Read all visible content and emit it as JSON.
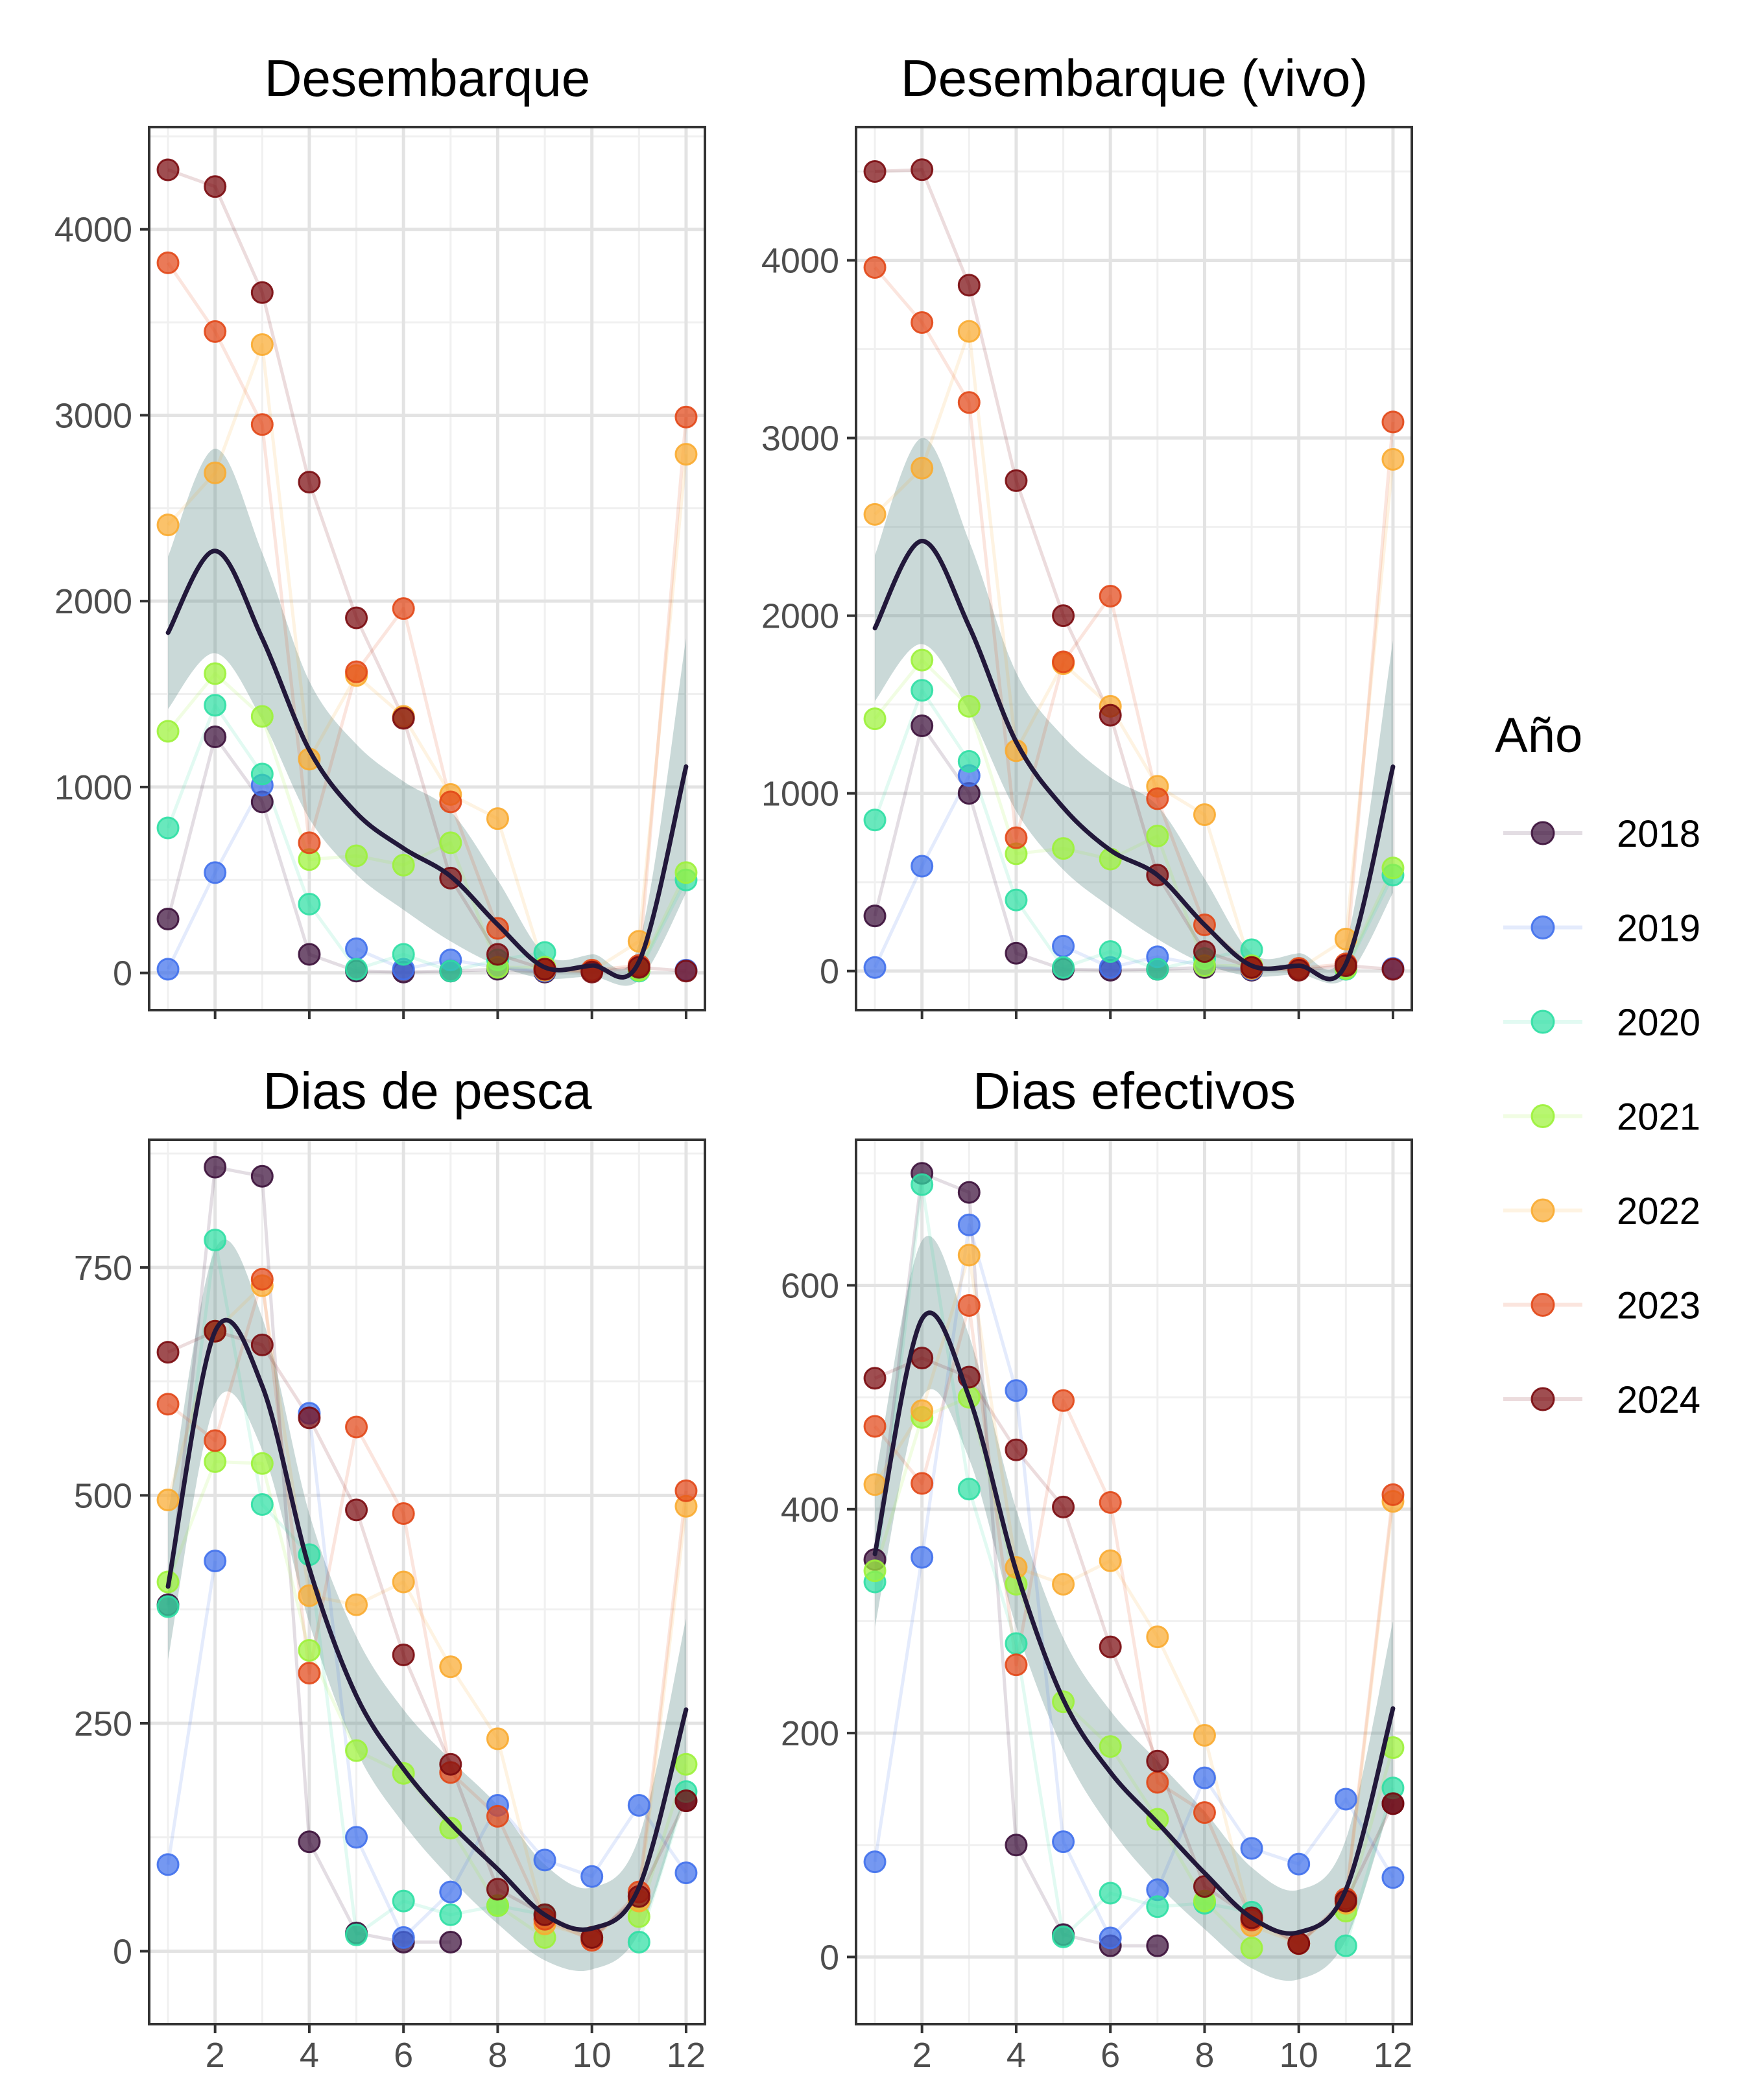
{
  "chart_data": {
    "type": "scatter",
    "legend": {
      "title": "Año",
      "position": "right"
    },
    "colors": {
      "2018": "#3b0f3a",
      "2019": "#4070ec",
      "2020": "#2fdfa4",
      "2021": "#9cf23a",
      "2022": "#f9ab30",
      "2023": "#e24717",
      "2024": "#7a0a0e",
      "trend_line": "#22183a",
      "ribbon": "#5b8a86"
    },
    "years": [
      "2018",
      "2019",
      "2020",
      "2021",
      "2022",
      "2023",
      "2024"
    ],
    "x": [
      1,
      2,
      3,
      4,
      5,
      6,
      7,
      8,
      9,
      10,
      11,
      12
    ],
    "xticks": [
      2,
      4,
      6,
      8,
      10,
      12
    ],
    "panels": [
      {
        "title": "Desembarque",
        "ylim": [
          -200,
          4550
        ],
        "yticks": [
          0,
          1000,
          2000,
          3000,
          4000
        ],
        "series": [
          {
            "name": "2018",
            "values": [
              290,
              1270,
              920,
              100,
              10,
              5,
              10,
              20,
              5,
              null,
              null,
              null
            ]
          },
          {
            "name": "2019",
            "values": [
              20,
              540,
              1010,
              null,
              130,
              20,
              70,
              30,
              10,
              null,
              null,
              15
            ]
          },
          {
            "name": "2020",
            "values": [
              780,
              1440,
              1070,
              370,
              20,
              100,
              10,
              70,
              110,
              null,
              10,
              500
            ]
          },
          {
            "name": "2021",
            "values": [
              1300,
              1610,
              1380,
              610,
              630,
              580,
              700,
              30,
              30,
              null,
              15,
              540
            ]
          },
          {
            "name": "2022",
            "values": [
              2410,
              2690,
              3380,
              1150,
              1600,
              1380,
              960,
              830,
              15,
              10,
              170,
              2790
            ]
          },
          {
            "name": "2023",
            "values": [
              3820,
              3450,
              2950,
              700,
              1620,
              1960,
              920,
              240,
              20,
              15,
              40,
              2990
            ]
          },
          {
            "name": "2024",
            "values": [
              4320,
              4230,
              3660,
              2640,
              1910,
              1370,
              510,
              100,
              20,
              5,
              30,
              10
            ]
          }
        ],
        "trend": [
          [
            1,
            1830
          ],
          [
            2,
            2270
          ],
          [
            3,
            1800
          ],
          [
            4,
            1200
          ],
          [
            5,
            860
          ],
          [
            6,
            670
          ],
          [
            7,
            520
          ],
          [
            8,
            260
          ],
          [
            9,
            30
          ],
          [
            10,
            40
          ],
          [
            11,
            60
          ],
          [
            12,
            1110
          ]
        ],
        "band": [
          [
            1,
            1420,
            2240
          ],
          [
            2,
            1720,
            2820
          ],
          [
            3,
            1360,
            2260
          ],
          [
            4,
            830,
            1570
          ],
          [
            5,
            530,
            1230
          ],
          [
            6,
            340,
            1030
          ],
          [
            7,
            170,
            870
          ],
          [
            8,
            40,
            500
          ],
          [
            9,
            -30,
            100
          ],
          [
            10,
            -20,
            100
          ],
          [
            11,
            -40,
            160
          ],
          [
            12,
            430,
            1800
          ]
        ]
      },
      {
        "title": "Desembarque (vivo)",
        "ylim": [
          -220,
          4750
        ],
        "yticks": [
          0,
          1000,
          2000,
          3000,
          4000
        ],
        "series": [
          {
            "name": "2018",
            "values": [
              310,
              1380,
              1000,
              100,
              10,
              5,
              10,
              20,
              5,
              null,
              null,
              null
            ]
          },
          {
            "name": "2019",
            "values": [
              20,
              590,
              1100,
              null,
              140,
              20,
              80,
              30,
              10,
              null,
              null,
              15
            ]
          },
          {
            "name": "2020",
            "values": [
              850,
              1580,
              1180,
              400,
              20,
              110,
              10,
              70,
              120,
              null,
              10,
              540
            ]
          },
          {
            "name": "2021",
            "values": [
              1420,
              1750,
              1490,
              660,
              690,
              630,
              760,
              30,
              30,
              null,
              15,
              580
            ]
          },
          {
            "name": "2022",
            "values": [
              2570,
              2830,
              3600,
              1240,
              1730,
              1490,
              1040,
              880,
              15,
              10,
              180,
              2880
            ]
          },
          {
            "name": "2023",
            "values": [
              3960,
              3650,
              3200,
              750,
              1740,
              2110,
              970,
              260,
              20,
              15,
              40,
              3090
            ]
          },
          {
            "name": "2024",
            "values": [
              4500,
              4510,
              3860,
              2760,
              2000,
              1440,
              540,
              110,
              20,
              5,
              30,
              10
            ]
          }
        ],
        "trend": [
          [
            1,
            1930
          ],
          [
            2,
            2420
          ],
          [
            3,
            1940
          ],
          [
            4,
            1290
          ],
          [
            5,
            920
          ],
          [
            6,
            680
          ],
          [
            7,
            540
          ],
          [
            8,
            260
          ],
          [
            9,
            30
          ],
          [
            10,
            30
          ],
          [
            11,
            40
          ],
          [
            12,
            1150
          ]
        ],
        "band": [
          [
            1,
            1520,
            2340
          ],
          [
            2,
            1840,
            3000
          ],
          [
            3,
            1460,
            2420
          ],
          [
            4,
            900,
            1680
          ],
          [
            5,
            570,
            1320
          ],
          [
            6,
            360,
            1090
          ],
          [
            7,
            180,
            930
          ],
          [
            8,
            40,
            520
          ],
          [
            9,
            -30,
            100
          ],
          [
            10,
            -20,
            100
          ],
          [
            11,
            -40,
            150
          ],
          [
            12,
            440,
            1860
          ]
        ]
      },
      {
        "title": "Dias de pesca",
        "ylim": [
          -80,
          890
        ],
        "yticks": [
          0,
          250,
          500,
          750
        ],
        "series": [
          {
            "name": "2018",
            "values": [
              380,
              860,
              850,
              120,
              20,
              10,
              10,
              null,
              null,
              null,
              null,
              165
            ]
          },
          {
            "name": "2019",
            "values": [
              95,
              428,
              null,
              590,
              125,
              15,
              65,
              160,
              100,
              82,
              160,
              86
            ]
          },
          {
            "name": "2020",
            "values": [
              378,
              780,
              490,
              435,
              18,
              55,
              40,
              50,
              40,
              null,
              10,
              175
            ]
          },
          {
            "name": "2021",
            "values": [
              405,
              537,
              535,
              330,
              220,
              195,
              135,
              50,
              15,
              null,
              38,
              205
            ]
          },
          {
            "name": "2022",
            "values": [
              495,
              680,
              730,
              390,
              380,
              405,
              312,
              233,
              30,
              15,
              55,
              488
            ]
          },
          {
            "name": "2023",
            "values": [
              600,
              560,
              737,
              305,
              575,
              480,
              196,
              148,
              35,
              12,
              65,
              505
            ]
          },
          {
            "name": "2024",
            "values": [
              657,
              680,
              665,
              585,
              484,
              325,
              205,
              68,
              40,
              15,
              60,
              165
            ]
          }
        ],
        "trend": [
          [
            1,
            400
          ],
          [
            2,
            680
          ],
          [
            3,
            620
          ],
          [
            4,
            420
          ],
          [
            5,
            280
          ],
          [
            6,
            200
          ],
          [
            7,
            140
          ],
          [
            8,
            90
          ],
          [
            9,
            40
          ],
          [
            10,
            25
          ],
          [
            11,
            70
          ],
          [
            12,
            265
          ]
        ],
        "band": [
          [
            1,
            320,
            480
          ],
          [
            2,
            600,
            770
          ],
          [
            3,
            550,
            695
          ],
          [
            4,
            360,
            480
          ],
          [
            5,
            220,
            345
          ],
          [
            6,
            140,
            265
          ],
          [
            7,
            80,
            210
          ],
          [
            8,
            30,
            160
          ],
          [
            9,
            -10,
            95
          ],
          [
            10,
            -20,
            70
          ],
          [
            11,
            20,
            125
          ],
          [
            12,
            175,
            365
          ]
        ]
      },
      {
        "title": "Dias efectivos",
        "ylim": [
          -60,
          730
        ],
        "yticks": [
          0,
          200,
          400,
          600
        ],
        "series": [
          {
            "name": "2018",
            "values": [
              355,
              700,
              683,
              100,
              20,
              10,
              10,
              null,
              null,
              null,
              null,
              137
            ]
          },
          {
            "name": "2019",
            "values": [
              85,
              357,
              654,
              506,
              103,
              17,
              60,
              160,
              97,
              83,
              141,
              71
            ]
          },
          {
            "name": "2020",
            "values": [
              335,
              690,
              418,
              280,
              18,
              57,
              45,
              48,
              40,
              null,
              10,
              151
            ]
          },
          {
            "name": "2021",
            "values": [
              345,
              482,
              500,
              333,
              228,
              188,
              123,
              50,
              8,
              null,
              41,
              187
            ]
          },
          {
            "name": "2022",
            "values": [
              422,
              488,
              627,
              348,
              333,
              354,
              286,
              198,
              28,
              12,
              48,
              407
            ]
          },
          {
            "name": "2023",
            "values": [
              474,
              423,
              582,
              261,
              497,
              406,
              156,
              129,
              33,
              12,
              52,
              413
            ]
          },
          {
            "name": "2024",
            "values": [
              517,
              535,
              518,
              453,
              402,
              277,
              175,
              63,
              35,
              12,
              50,
              137
            ]
          }
        ],
        "trend": [
          [
            1,
            360
          ],
          [
            2,
            570
          ],
          [
            3,
            500
          ],
          [
            4,
            345
          ],
          [
            5,
            230
          ],
          [
            6,
            165
          ],
          [
            7,
            120
          ],
          [
            8,
            75
          ],
          [
            9,
            35
          ],
          [
            10,
            22
          ],
          [
            11,
            60
          ],
          [
            12,
            222
          ]
        ],
        "band": [
          [
            1,
            295,
            425
          ],
          [
            2,
            500,
            640
          ],
          [
            3,
            445,
            555
          ],
          [
            4,
            295,
            400
          ],
          [
            5,
            185,
            285
          ],
          [
            6,
            115,
            220
          ],
          [
            7,
            65,
            175
          ],
          [
            8,
            25,
            130
          ],
          [
            9,
            -10,
            80
          ],
          [
            10,
            -20,
            60
          ],
          [
            11,
            15,
            105
          ],
          [
            12,
            145,
            300
          ]
        ]
      }
    ]
  }
}
